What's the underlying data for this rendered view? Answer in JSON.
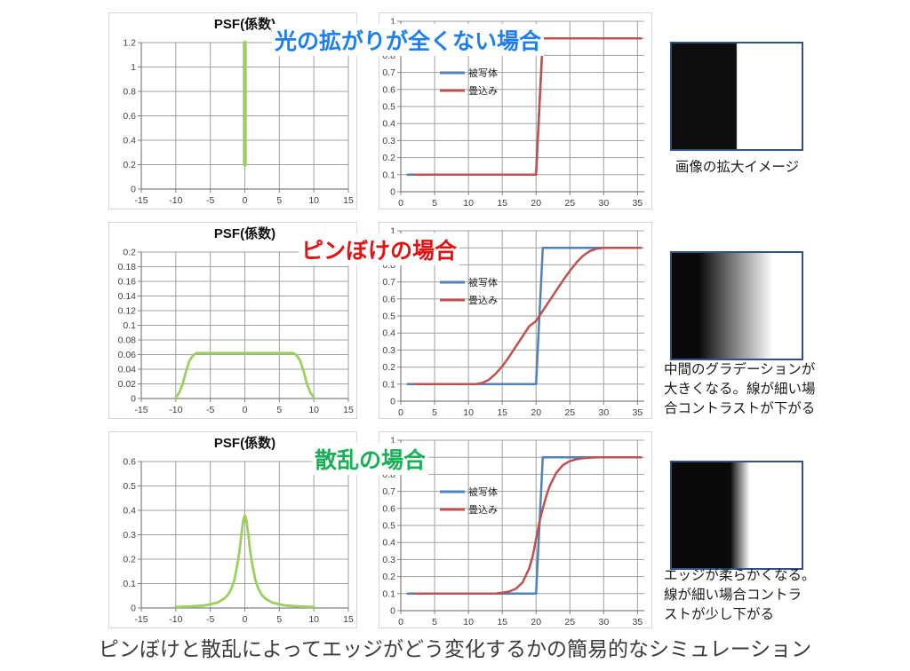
{
  "page": {
    "bottom_caption": "ピンぼけと散乱によってエッジがどう変化するかの簡易的なシミュレーション"
  },
  "colors": {
    "psf_line": "#9bd05f",
    "subject_line": "#4f81bd",
    "convolution_line": "#c0504d",
    "gridline": "#a0a0a0",
    "axis": "#7f7f7f",
    "image_border": "#2e5188"
  },
  "rows": [
    {
      "title": {
        "text": "光の拡がりが全くない場合",
        "color": "#1e7ef0"
      },
      "image": {
        "gradient": "linear-gradient(90deg,#0e0e0e 0%,#0e0e0e 49.7%,#ffffff 50.3%,#ffffff 100%)"
      },
      "caption_lines": {
        "0": "画像の拡大イメージ"
      }
    },
    {
      "title": {
        "text": "ピンぼけの場合",
        "color": "#e31212"
      },
      "image": {
        "gradient": "linear-gradient(90deg,#0a0a0a 0%,#0a0a0a 21%,#ffffff 78%,#ffffff 100%)"
      },
      "caption_lines": {
        "0": "中間のグラデーションが",
        "1": "大きくなる。線が細い場",
        "2": "合コントラストが下がる"
      }
    },
    {
      "title": {
        "text": "散乱の場合",
        "color": "#17b054"
      },
      "image": {
        "gradient": "linear-gradient(90deg,#0a0a0a 0%,#0a0a0a 45%,#ffffff 60%,#ffffff 100%)"
      },
      "caption_lines": {
        "0": "エッジが柔らかくなる。",
        "1": "線が細い場合コントラ",
        "2": "ストが少し下がる"
      }
    }
  ],
  "legend_labels": {
    "subject": "被写体",
    "convolution": "畳込み"
  },
  "chart_data": [
    {
      "type": "line",
      "title": "PSF(係数)",
      "x": {
        "min": -15,
        "max": 15,
        "ticks": [
          -15,
          -10,
          -5,
          0,
          5,
          10,
          15
        ]
      },
      "y": {
        "min": 0,
        "max": 1.2,
        "ticks": [
          [
            0,
            "0"
          ],
          [
            0.2,
            "0.2"
          ],
          [
            0.4,
            "0.4"
          ],
          [
            0.6,
            "0.6"
          ],
          [
            0.8,
            "0.8"
          ],
          [
            1,
            "1"
          ],
          [
            1.2,
            "1.2"
          ]
        ]
      },
      "series": [
        {
          "name": "PSF",
          "color": "#9bd05f",
          "width": 4.5,
          "points": [
            [
              0,
              0.2
            ],
            [
              0,
              1.2
            ]
          ]
        }
      ]
    },
    {
      "type": "line",
      "title": "",
      "x": {
        "min": 0,
        "max": 36,
        "ticks": [
          0,
          5,
          10,
          15,
          20,
          25,
          30,
          35
        ]
      },
      "y": {
        "min": 0,
        "max": 1,
        "ticks": [
          [
            0,
            "0"
          ],
          [
            0.1,
            "0.1"
          ],
          [
            0.2,
            "0.2"
          ],
          [
            0.3,
            "0.3"
          ],
          [
            0.4,
            "0.4"
          ],
          [
            0.5,
            "0.5"
          ],
          [
            0.6,
            "0.6"
          ],
          [
            0.7,
            "0.7"
          ],
          [
            0.8,
            "0.8"
          ],
          [
            0.9,
            "0.9"
          ],
          [
            1,
            "1"
          ]
        ]
      },
      "legend": [
        {
          "label": "被写体",
          "color": "#4f81bd"
        },
        {
          "label": "畳込み",
          "color": "#c0504d"
        }
      ],
      "series": [
        {
          "name": "被写体",
          "color": "#4f81bd",
          "width": 2.5,
          "points": [
            [
              1,
              0.1
            ],
            [
              20,
              0.1
            ],
            [
              21,
              0.9
            ],
            [
              35.5,
              0.9
            ]
          ]
        },
        {
          "name": "畳込み",
          "color": "#c0504d",
          "width": 2.5,
          "points": [
            [
              2,
              0.1
            ],
            [
              20,
              0.1
            ],
            [
              21,
              0.9
            ],
            [
              35.5,
              0.9
            ]
          ]
        }
      ]
    },
    {
      "type": "line",
      "title": "PSF(係数)",
      "x": {
        "min": -15,
        "max": 15,
        "ticks": [
          -15,
          -10,
          -5,
          0,
          5,
          10,
          15
        ]
      },
      "y": {
        "min": 0,
        "max": 0.2,
        "ticks": [
          [
            0,
            "0"
          ],
          [
            0.02,
            "0.02"
          ],
          [
            0.04,
            "0.04"
          ],
          [
            0.06,
            "0.06"
          ],
          [
            0.08,
            "0.08"
          ],
          [
            0.1,
            "0.1"
          ],
          [
            0.12,
            "0.12"
          ],
          [
            0.14,
            "0.14"
          ],
          [
            0.16,
            "0.16"
          ],
          [
            0.18,
            "0.18"
          ],
          [
            0.2,
            "0.2"
          ]
        ]
      },
      "series": [
        {
          "name": "PSF",
          "color": "#9bd05f",
          "width": 2.8,
          "points": [
            [
              -10,
              0.001
            ],
            [
              -9.5,
              0.008
            ],
            [
              -9,
              0.02
            ],
            [
              -8.5,
              0.038
            ],
            [
              -8,
              0.052
            ],
            [
              -7.5,
              0.059
            ],
            [
              -7,
              0.062
            ],
            [
              0,
              0.062
            ],
            [
              7,
              0.062
            ],
            [
              7.5,
              0.059
            ],
            [
              8,
              0.052
            ],
            [
              8.5,
              0.038
            ],
            [
              9,
              0.02
            ],
            [
              9.5,
              0.008
            ],
            [
              10,
              0.001
            ]
          ]
        }
      ]
    },
    {
      "type": "line",
      "title": "",
      "x": {
        "min": 0,
        "max": 36,
        "ticks": [
          0,
          5,
          10,
          15,
          20,
          25,
          30,
          35
        ]
      },
      "y": {
        "min": 0,
        "max": 1,
        "ticks": [
          [
            0,
            "0"
          ],
          [
            0.1,
            "0.1"
          ],
          [
            0.2,
            "0.2"
          ],
          [
            0.3,
            "0.3"
          ],
          [
            0.4,
            "0.4"
          ],
          [
            0.5,
            "0.5"
          ],
          [
            0.6,
            "0.6"
          ],
          [
            0.7,
            "0.7"
          ],
          [
            0.8,
            "0.8"
          ],
          [
            0.9,
            "0.9"
          ],
          [
            1,
            "1"
          ]
        ]
      },
      "legend": [
        {
          "label": "被写体",
          "color": "#4f81bd"
        },
        {
          "label": "畳込み",
          "color": "#c0504d"
        }
      ],
      "series": [
        {
          "name": "被写体",
          "color": "#4f81bd",
          "width": 2.5,
          "points": [
            [
              1,
              0.1
            ],
            [
              20,
              0.1
            ],
            [
              21,
              0.9
            ],
            [
              35.5,
              0.9
            ]
          ]
        },
        {
          "name": "畳込み",
          "color": "#c0504d",
          "width": 2.5,
          "points": [
            [
              2,
              0.1
            ],
            [
              11,
              0.1
            ],
            [
              12,
              0.107
            ],
            [
              13,
              0.125
            ],
            [
              14,
              0.16
            ],
            [
              15,
              0.205
            ],
            [
              16,
              0.26
            ],
            [
              17,
              0.32
            ],
            [
              18,
              0.38
            ],
            [
              19,
              0.44
            ],
            [
              20,
              0.47
            ],
            [
              20.5,
              0.5
            ],
            [
              21,
              0.53
            ],
            [
              22,
              0.59
            ],
            [
              23,
              0.65
            ],
            [
              24,
              0.71
            ],
            [
              25,
              0.765
            ],
            [
              26,
              0.815
            ],
            [
              27,
              0.855
            ],
            [
              28,
              0.882
            ],
            [
              29,
              0.895
            ],
            [
              30,
              0.9
            ],
            [
              35.5,
              0.9
            ]
          ]
        }
      ]
    },
    {
      "type": "line",
      "title": "PSF(係数)",
      "x": {
        "min": -15,
        "max": 15,
        "ticks": [
          -15,
          -10,
          -5,
          0,
          5,
          10,
          15
        ]
      },
      "y": {
        "min": 0,
        "max": 0.6,
        "ticks": [
          [
            0,
            "0"
          ],
          [
            0.1,
            "0.1"
          ],
          [
            0.2,
            "0.2"
          ],
          [
            0.3,
            "0.3"
          ],
          [
            0.4,
            "0.4"
          ],
          [
            0.5,
            "0.5"
          ],
          [
            0.6,
            "0.6"
          ]
        ]
      },
      "series": [
        {
          "name": "PSF",
          "color": "#9bd05f",
          "width": 2.8,
          "points": [
            [
              -10,
              0.004
            ],
            [
              -9,
              0.005
            ],
            [
              -8,
              0.006
            ],
            [
              -7,
              0.008
            ],
            [
              -6,
              0.01
            ],
            [
              -5,
              0.015
            ],
            [
              -4,
              0.022
            ],
            [
              -3.5,
              0.03
            ],
            [
              -3,
              0.038
            ],
            [
              -2.5,
              0.052
            ],
            [
              -2,
              0.076
            ],
            [
              -1.5,
              0.117
            ],
            [
              -1,
              0.19
            ],
            [
              -0.75,
              0.24
            ],
            [
              -0.5,
              0.3
            ],
            [
              -0.25,
              0.357
            ],
            [
              0,
              0.38
            ],
            [
              0.25,
              0.357
            ],
            [
              0.5,
              0.3
            ],
            [
              0.75,
              0.24
            ],
            [
              1,
              0.19
            ],
            [
              1.5,
              0.117
            ],
            [
              2,
              0.076
            ],
            [
              2.5,
              0.052
            ],
            [
              3,
              0.038
            ],
            [
              3.5,
              0.03
            ],
            [
              4,
              0.022
            ],
            [
              5,
              0.015
            ],
            [
              6,
              0.01
            ],
            [
              7,
              0.008
            ],
            [
              8,
              0.006
            ],
            [
              9,
              0.005
            ],
            [
              10,
              0.004
            ]
          ]
        }
      ]
    },
    {
      "type": "line",
      "title": "",
      "x": {
        "min": 0,
        "max": 36,
        "ticks": [
          0,
          5,
          10,
          15,
          20,
          25,
          30,
          35
        ]
      },
      "y": {
        "min": 0,
        "max": 1,
        "ticks": [
          [
            0,
            "0"
          ],
          [
            0.1,
            "0.1"
          ],
          [
            0.2,
            "0.2"
          ],
          [
            0.3,
            "0.3"
          ],
          [
            0.4,
            "0.4"
          ],
          [
            0.5,
            "0.5"
          ],
          [
            0.6,
            "0.6"
          ],
          [
            0.7,
            "0.7"
          ],
          [
            0.8,
            "0.8"
          ],
          [
            0.9,
            "0.9"
          ],
          [
            1,
            "1"
          ]
        ]
      },
      "legend": [
        {
          "label": "被写体",
          "color": "#4f81bd"
        },
        {
          "label": "畳込み",
          "color": "#c0504d"
        }
      ],
      "series": [
        {
          "name": "被写体",
          "color": "#4f81bd",
          "width": 2.5,
          "points": [
            [
              1,
              0.1
            ],
            [
              20,
              0.1
            ],
            [
              21,
              0.9
            ],
            [
              35.5,
              0.9
            ]
          ]
        },
        {
          "name": "畳込み",
          "color": "#c0504d",
          "width": 2.5,
          "points": [
            [
              2,
              0.1
            ],
            [
              14,
              0.1
            ],
            [
              15,
              0.105
            ],
            [
              16,
              0.112
            ],
            [
              17,
              0.128
            ],
            [
              18,
              0.165
            ],
            [
              19,
              0.25
            ],
            [
              19.5,
              0.32
            ],
            [
              20,
              0.42
            ],
            [
              20.5,
              0.52
            ],
            [
              21,
              0.6
            ],
            [
              21.5,
              0.67
            ],
            [
              22,
              0.73
            ],
            [
              23,
              0.81
            ],
            [
              24,
              0.855
            ],
            [
              25,
              0.878
            ],
            [
              26,
              0.889
            ],
            [
              27,
              0.895
            ],
            [
              28,
              0.898
            ],
            [
              29,
              0.9
            ],
            [
              35.5,
              0.9
            ]
          ]
        }
      ]
    }
  ]
}
